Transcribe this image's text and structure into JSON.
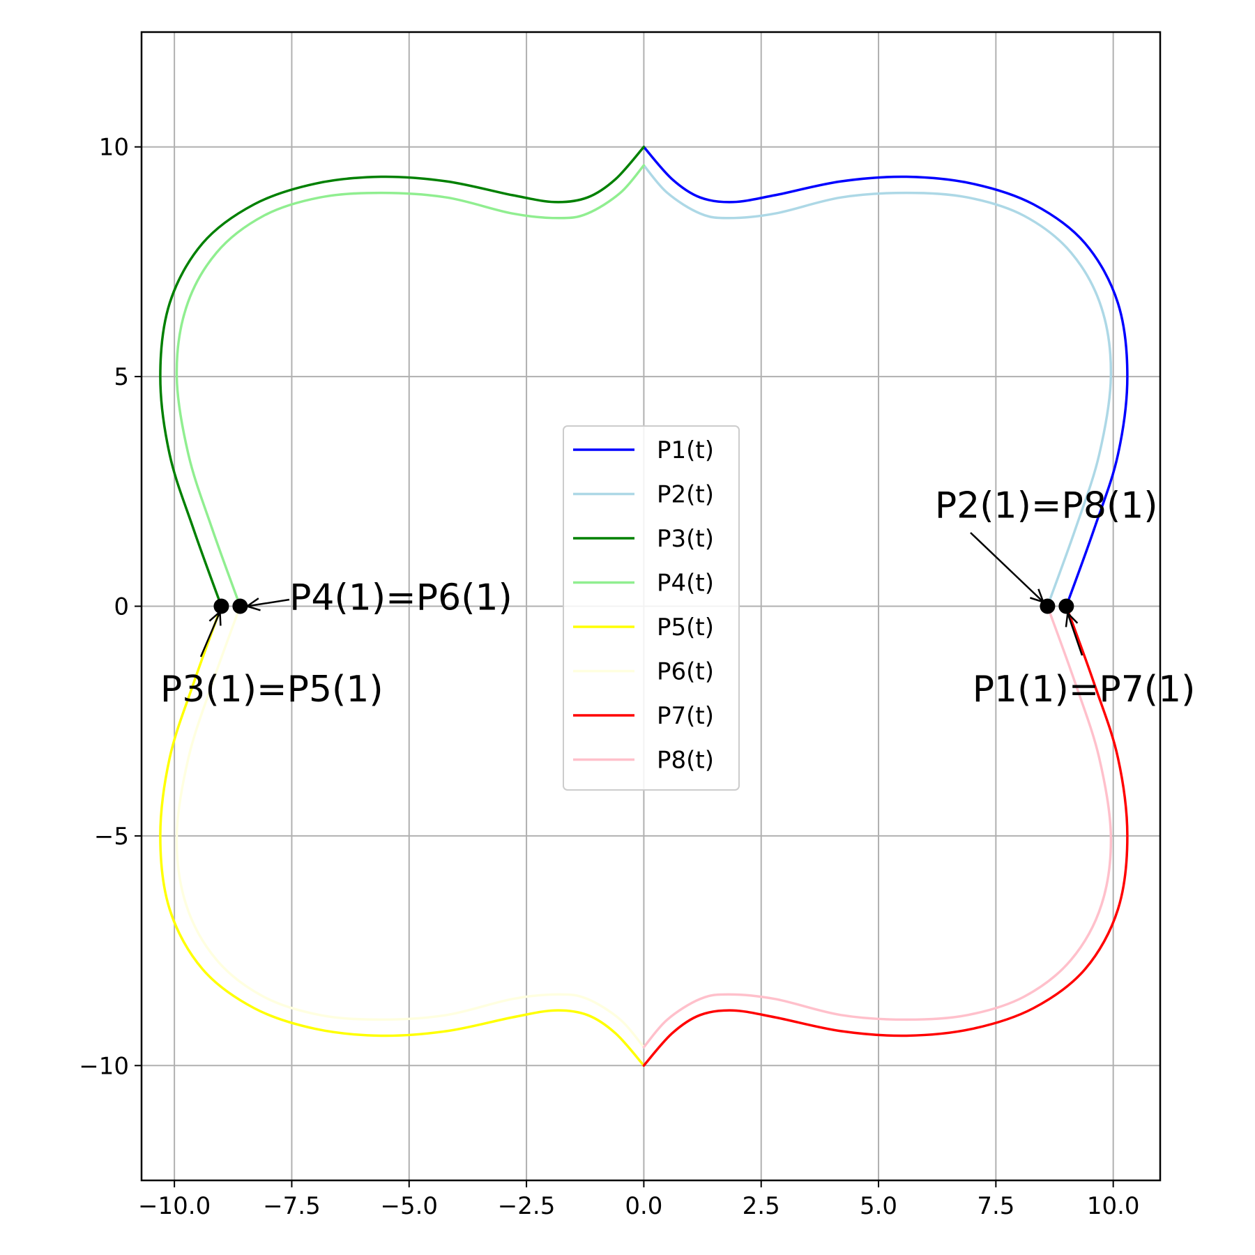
{
  "chart_data": {
    "type": "line",
    "xlim": [
      -10.7,
      11.0
    ],
    "ylim": [
      -12.5,
      12.5
    ],
    "grid": true,
    "legend": {
      "placement": "center"
    },
    "x_ticks": [
      {
        "value": -10.0,
        "label": "−10.0"
      },
      {
        "value": -7.5,
        "label": "−7.5"
      },
      {
        "value": -5.0,
        "label": "−5.0"
      },
      {
        "value": -2.5,
        "label": "−2.5"
      },
      {
        "value": 0.0,
        "label": "0.0"
      },
      {
        "value": 2.5,
        "label": "2.5"
      },
      {
        "value": 5.0,
        "label": "5.0"
      },
      {
        "value": 7.5,
        "label": "7.5"
      },
      {
        "value": 10.0,
        "label": "10.0"
      }
    ],
    "y_ticks": [
      {
        "value": 10,
        "label": "10"
      },
      {
        "value": 5,
        "label": "5"
      },
      {
        "value": 0,
        "label": "0"
      },
      {
        "value": -5,
        "label": "−5"
      },
      {
        "value": -10,
        "label": "−10"
      }
    ],
    "series": [
      {
        "name": "P1(t)",
        "color": "#0000ff",
        "x": [
          9.0,
          9.6,
          10.1,
          10.3,
          10.1,
          9.4,
          8.3,
          7.0,
          5.6,
          4.2,
          2.8,
          1.9,
          1.2,
          0.6,
          0.0
        ],
        "y": [
          0.0,
          1.7,
          3.3,
          5.0,
          6.6,
          7.9,
          8.75,
          9.2,
          9.35,
          9.25,
          8.95,
          8.8,
          8.9,
          9.3,
          10.0
        ]
      },
      {
        "name": "P2(t)",
        "color": "#add8e6",
        "x": [
          8.6,
          9.2,
          9.7,
          9.95,
          9.75,
          9.1,
          8.1,
          6.9,
          5.6,
          4.2,
          2.8,
          1.8,
          1.2,
          0.5,
          0.0
        ],
        "y": [
          0.0,
          1.7,
          3.3,
          5.0,
          6.5,
          7.7,
          8.5,
          8.9,
          9.0,
          8.9,
          8.55,
          8.45,
          8.55,
          9.0,
          9.6
        ]
      },
      {
        "name": "P3(t)",
        "color": "#008000",
        "x": [
          -9.0,
          -9.6,
          -10.1,
          -10.3,
          -10.1,
          -9.4,
          -8.3,
          -7.0,
          -5.6,
          -4.2,
          -2.8,
          -1.9,
          -1.2,
          -0.6,
          0.0
        ],
        "y": [
          0.0,
          1.7,
          3.3,
          5.0,
          6.6,
          7.9,
          8.75,
          9.2,
          9.35,
          9.25,
          8.95,
          8.8,
          8.9,
          9.3,
          10.0
        ]
      },
      {
        "name": "P4(t)",
        "color": "#90ee90",
        "x": [
          -8.6,
          -9.2,
          -9.7,
          -9.95,
          -9.75,
          -9.1,
          -8.1,
          -6.9,
          -5.6,
          -4.2,
          -2.8,
          -1.8,
          -1.2,
          -0.5,
          0.0
        ],
        "y": [
          0.0,
          1.7,
          3.3,
          5.0,
          6.5,
          7.7,
          8.5,
          8.9,
          9.0,
          8.9,
          8.55,
          8.45,
          8.55,
          9.0,
          9.6
        ]
      },
      {
        "name": "P5(t)",
        "color": "#ffff00",
        "x": [
          -9.0,
          -9.6,
          -10.1,
          -10.3,
          -10.1,
          -9.4,
          -8.3,
          -7.0,
          -5.6,
          -4.2,
          -2.8,
          -1.9,
          -1.2,
          -0.6,
          0.0
        ],
        "y": [
          0.0,
          -1.7,
          -3.3,
          -5.0,
          -6.6,
          -7.9,
          -8.75,
          -9.2,
          -9.35,
          -9.25,
          -8.95,
          -8.8,
          -8.9,
          -9.3,
          -10.0
        ]
      },
      {
        "name": "P6(t)",
        "color": "#ffffe0",
        "x": [
          -8.6,
          -9.2,
          -9.7,
          -9.95,
          -9.75,
          -9.1,
          -8.1,
          -6.9,
          -5.6,
          -4.2,
          -2.8,
          -1.8,
          -1.2,
          -0.5,
          0.0
        ],
        "y": [
          0.0,
          -1.7,
          -3.3,
          -5.0,
          -6.5,
          -7.7,
          -8.5,
          -8.9,
          -9.0,
          -8.9,
          -8.55,
          -8.45,
          -8.55,
          -9.0,
          -9.6
        ]
      },
      {
        "name": "P7(t)",
        "color": "#ff0000",
        "x": [
          9.0,
          9.6,
          10.1,
          10.3,
          10.1,
          9.4,
          8.3,
          7.0,
          5.6,
          4.2,
          2.8,
          1.9,
          1.2,
          0.6,
          0.0
        ],
        "y": [
          0.0,
          -1.7,
          -3.3,
          -5.0,
          -6.6,
          -7.9,
          -8.75,
          -9.2,
          -9.35,
          -9.25,
          -8.95,
          -8.8,
          -8.9,
          -9.3,
          -10.0
        ]
      },
      {
        "name": "P8(t)",
        "color": "#ffc0cb",
        "x": [
          8.6,
          9.2,
          9.7,
          9.95,
          9.75,
          9.1,
          8.1,
          6.9,
          5.6,
          4.2,
          2.8,
          1.8,
          1.2,
          0.5,
          0.0
        ],
        "y": [
          0.0,
          -1.7,
          -3.3,
          -5.0,
          -6.5,
          -7.7,
          -8.5,
          -8.9,
          -9.0,
          -8.9,
          -8.55,
          -8.45,
          -8.55,
          -9.0,
          -9.6
        ]
      }
    ],
    "points": [
      {
        "x": -9.0,
        "y": 0.0
      },
      {
        "x": -8.6,
        "y": 0.0
      },
      {
        "x": 8.6,
        "y": 0.0
      },
      {
        "x": 9.0,
        "y": 0.0
      }
    ],
    "annotations": [
      {
        "text": "P4(1)=P6(1)",
        "x": -8.6,
        "y": 0.0,
        "text_x": -7.55,
        "text_y": 0.2
      },
      {
        "text": "P3(1)=P5(1)",
        "x": -9.0,
        "y": 0.0,
        "text_x": -10.3,
        "text_y": -1.8
      },
      {
        "text": "P2(1)=P8(1)",
        "x": 8.6,
        "y": 0.0,
        "text_x": 6.2,
        "text_y": 2.2
      },
      {
        "text": "P1(1)=P7(1)",
        "x": 9.0,
        "y": 0.0,
        "text_x": 7.0,
        "text_y": -1.8
      }
    ]
  }
}
